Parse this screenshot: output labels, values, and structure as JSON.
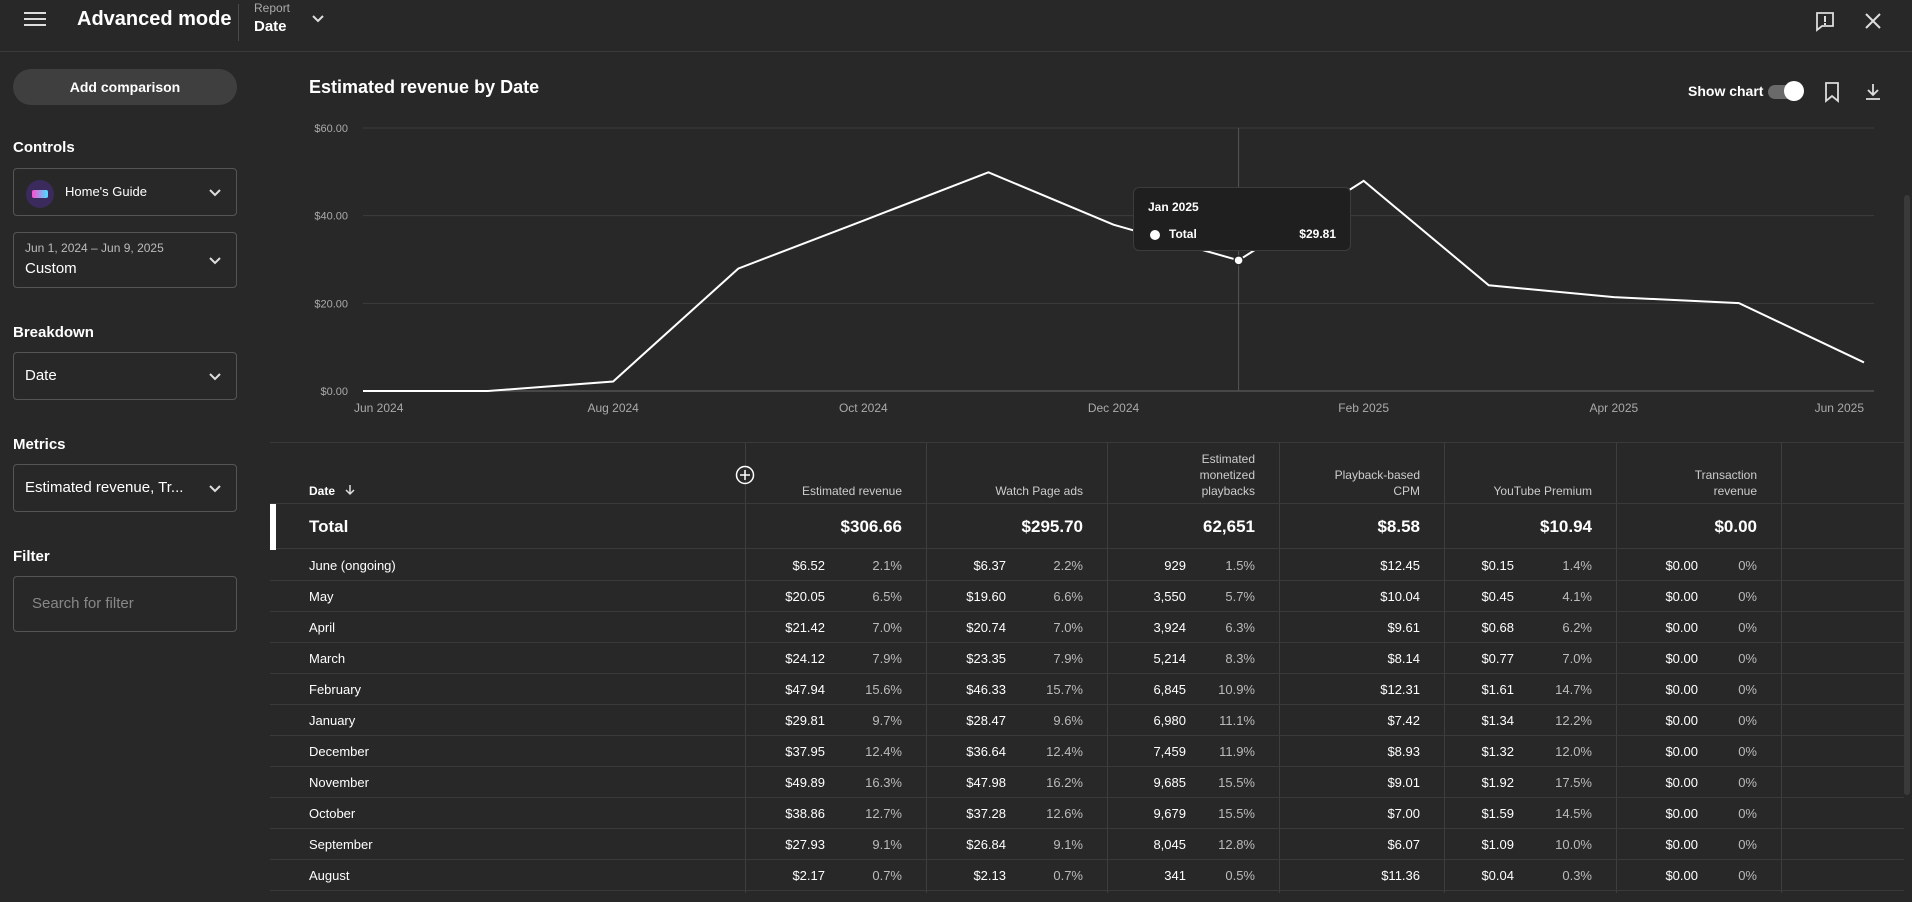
{
  "header": {
    "title": "Advanced mode",
    "report_caption": "Report",
    "report_value": "Date"
  },
  "sidebar": {
    "add_comparison": "Add comparison",
    "controls_label": "Controls",
    "channel_name": "Home's Guide",
    "date_range_caption": "Jun 1, 2024 – Jun 9, 2025",
    "date_range_value": "Custom",
    "breakdown_label": "Breakdown",
    "breakdown_value": "Date",
    "metrics_label": "Metrics",
    "metrics_value": "Estimated revenue, Tr...",
    "filter_label": "Filter",
    "filter_placeholder": "Search for filter"
  },
  "chart_panel": {
    "title": "Estimated revenue by Date",
    "show_chart_label": "Show chart",
    "show_chart_on": true,
    "tooltip": {
      "date": "Jan 2025",
      "series": "Total",
      "value": "$29.81"
    }
  },
  "chart_data": {
    "type": "line",
    "title": "Estimated revenue by Date",
    "xlabel": "",
    "ylabel": "",
    "ylim": [
      0,
      60
    ],
    "y_ticks": [
      "$0.00",
      "$20.00",
      "$40.00",
      "$60.00"
    ],
    "x_ticks": [
      "Jun 2024",
      "Aug 2024",
      "Oct 2024",
      "Dec 2024",
      "Feb 2025",
      "Apr 2025",
      "Jun 2025"
    ],
    "grid": true,
    "line_color": "#ffffff",
    "x": [
      "2024-06",
      "2024-07",
      "2024-08",
      "2024-09",
      "2024-10",
      "2024-11",
      "2024-12",
      "2025-01",
      "2025-02",
      "2025-03",
      "2025-04",
      "2025-05",
      "2025-06"
    ],
    "values": [
      0,
      0,
      2.17,
      27.93,
      38.86,
      49.89,
      37.95,
      29.81,
      47.94,
      24.12,
      21.42,
      20.05,
      6.52
    ],
    "highlight_index": 7
  },
  "table": {
    "headers": {
      "date": "Date",
      "est_revenue": "Estimated revenue",
      "watch_page_ads": "Watch Page ads",
      "monetized_playbacks_1": "Estimated",
      "monetized_playbacks_2": "monetized",
      "monetized_playbacks_3": "playbacks",
      "cpm_1": "Playback-based",
      "cpm_2": "CPM",
      "youtube_premium": "YouTube Premium",
      "transaction_1": "Transaction",
      "transaction_2": "revenue"
    },
    "total": {
      "label": "Total",
      "est_revenue": "$306.66",
      "watch_page_ads": "$295.70",
      "playbacks": "62,651",
      "cpm": "$8.58",
      "premium": "$10.94",
      "transaction": "$0.00"
    },
    "rows": [
      {
        "date": "June (ongoing)",
        "rev": "$6.52",
        "rev_pct": "2.1%",
        "ads": "$6.37",
        "ads_pct": "2.2%",
        "plays": "929",
        "plays_pct": "1.5%",
        "cpm": "$12.45",
        "prem": "$0.15",
        "prem_pct": "1.4%",
        "trans": "$0.00",
        "trans_pct": "0%"
      },
      {
        "date": "May",
        "rev": "$20.05",
        "rev_pct": "6.5%",
        "ads": "$19.60",
        "ads_pct": "6.6%",
        "plays": "3,550",
        "plays_pct": "5.7%",
        "cpm": "$10.04",
        "prem": "$0.45",
        "prem_pct": "4.1%",
        "trans": "$0.00",
        "trans_pct": "0%"
      },
      {
        "date": "April",
        "rev": "$21.42",
        "rev_pct": "7.0%",
        "ads": "$20.74",
        "ads_pct": "7.0%",
        "plays": "3,924",
        "plays_pct": "6.3%",
        "cpm": "$9.61",
        "prem": "$0.68",
        "prem_pct": "6.2%",
        "trans": "$0.00",
        "trans_pct": "0%"
      },
      {
        "date": "March",
        "rev": "$24.12",
        "rev_pct": "7.9%",
        "ads": "$23.35",
        "ads_pct": "7.9%",
        "plays": "5,214",
        "plays_pct": "8.3%",
        "cpm": "$8.14",
        "prem": "$0.77",
        "prem_pct": "7.0%",
        "trans": "$0.00",
        "trans_pct": "0%"
      },
      {
        "date": "February",
        "rev": "$47.94",
        "rev_pct": "15.6%",
        "ads": "$46.33",
        "ads_pct": "15.7%",
        "plays": "6,845",
        "plays_pct": "10.9%",
        "cpm": "$12.31",
        "prem": "$1.61",
        "prem_pct": "14.7%",
        "trans": "$0.00",
        "trans_pct": "0%"
      },
      {
        "date": "January",
        "rev": "$29.81",
        "rev_pct": "9.7%",
        "ads": "$28.47",
        "ads_pct": "9.6%",
        "plays": "6,980",
        "plays_pct": "11.1%",
        "cpm": "$7.42",
        "prem": "$1.34",
        "prem_pct": "12.2%",
        "trans": "$0.00",
        "trans_pct": "0%"
      },
      {
        "date": "December",
        "rev": "$37.95",
        "rev_pct": "12.4%",
        "ads": "$36.64",
        "ads_pct": "12.4%",
        "plays": "7,459",
        "plays_pct": "11.9%",
        "cpm": "$8.93",
        "prem": "$1.32",
        "prem_pct": "12.0%",
        "trans": "$0.00",
        "trans_pct": "0%"
      },
      {
        "date": "November",
        "rev": "$49.89",
        "rev_pct": "16.3%",
        "ads": "$47.98",
        "ads_pct": "16.2%",
        "plays": "9,685",
        "plays_pct": "15.5%",
        "cpm": "$9.01",
        "prem": "$1.92",
        "prem_pct": "17.5%",
        "trans": "$0.00",
        "trans_pct": "0%"
      },
      {
        "date": "October",
        "rev": "$38.86",
        "rev_pct": "12.7%",
        "ads": "$37.28",
        "ads_pct": "12.6%",
        "plays": "9,679",
        "plays_pct": "15.5%",
        "cpm": "$7.00",
        "prem": "$1.59",
        "prem_pct": "14.5%",
        "trans": "$0.00",
        "trans_pct": "0%"
      },
      {
        "date": "September",
        "rev": "$27.93",
        "rev_pct": "9.1%",
        "ads": "$26.84",
        "ads_pct": "9.1%",
        "plays": "8,045",
        "plays_pct": "12.8%",
        "cpm": "$6.07",
        "prem": "$1.09",
        "prem_pct": "10.0%",
        "trans": "$0.00",
        "trans_pct": "0%"
      },
      {
        "date": "August",
        "rev": "$2.17",
        "rev_pct": "0.7%",
        "ads": "$2.13",
        "ads_pct": "0.7%",
        "plays": "341",
        "plays_pct": "0.5%",
        "cpm": "$11.36",
        "prem": "$0.04",
        "prem_pct": "0.3%",
        "trans": "$0.00",
        "trans_pct": "0%"
      }
    ]
  }
}
